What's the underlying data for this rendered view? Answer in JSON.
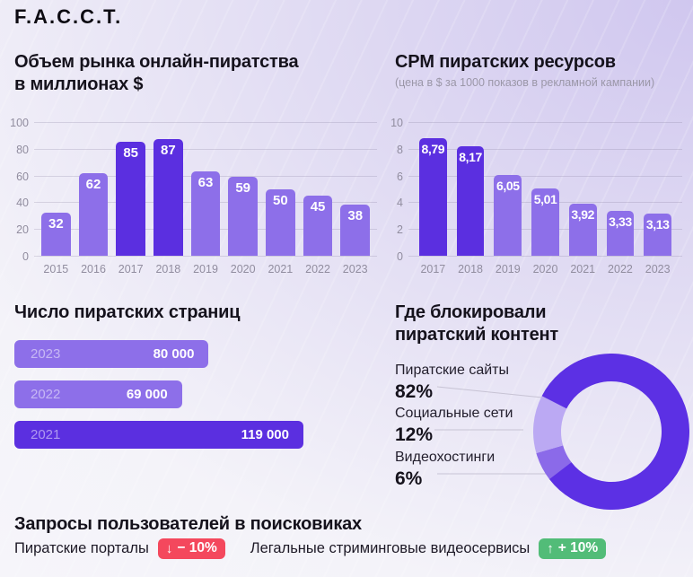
{
  "brand": {
    "logo": "F.A.C.C.T."
  },
  "colors": {
    "bar_light": "#8d6fe9",
    "bar_dark": "#5b2fe0",
    "donut_dark": "#5c30e4",
    "donut_light": "#bba9f3",
    "donut_mid": "#8b6ae9",
    "badge_red": "#f4485d",
    "badge_green": "#52bc78"
  },
  "chart_data": [
    {
      "id": "market",
      "type": "bar",
      "title": "Объем рынка онлайн-пиратства в миллионах $",
      "title_lines": [
        "Объем рынка онлайн-пиратства",
        "в миллионах $"
      ],
      "categories": [
        "2015",
        "2016",
        "2017",
        "2018",
        "2019",
        "2020",
        "2021",
        "2022",
        "2023"
      ],
      "values": [
        32,
        62,
        85,
        87,
        63,
        59,
        50,
        45,
        38
      ],
      "value_labels": [
        "32",
        "62",
        "85",
        "87",
        "63",
        "59",
        "50",
        "45",
        "38"
      ],
      "highlight": [
        "2017",
        "2018"
      ],
      "yticks": [
        "100",
        "80",
        "60",
        "40",
        "20",
        "0"
      ],
      "ylim": [
        0,
        100
      ],
      "grid": true,
      "legend": "none"
    },
    {
      "id": "cpm",
      "type": "bar",
      "title": "CPM пиратских ресурсов",
      "subtitle": "(цена в $ за 1000 показов в рекламной кампании)",
      "categories": [
        "2017",
        "2018",
        "2019",
        "2020",
        "2021",
        "2022",
        "2023"
      ],
      "values": [
        8.79,
        8.17,
        6.05,
        5.01,
        3.92,
        3.33,
        3.13
      ],
      "value_labels": [
        "8,79",
        "8,17",
        "6,05",
        "5,01",
        "3,92",
        "3,33",
        "3,13"
      ],
      "highlight": [
        "2017",
        "2018"
      ],
      "yticks": [
        "10",
        "8",
        "6",
        "4",
        "2",
        "0"
      ],
      "ylim": [
        0,
        10
      ],
      "grid": true,
      "legend": "none"
    },
    {
      "id": "pages",
      "type": "bar",
      "orientation": "horizontal",
      "title": "Число пиратских страниц",
      "categories": [
        "2023",
        "2022",
        "2021"
      ],
      "values": [
        80000,
        69000,
        119000
      ],
      "value_labels": [
        "80 000",
        "69 000",
        "119 000"
      ],
      "highlight": [
        "2021"
      ],
      "xlim": [
        0,
        119000
      ],
      "grid": false
    },
    {
      "id": "blocked",
      "type": "pie",
      "title": "Где блокировали пиратский контент",
      "title_lines": [
        "Где блокировали",
        "пиратский контент"
      ],
      "labels": [
        "Пиратские сайты",
        "Социальные сети",
        "Видеохостинги"
      ],
      "values": [
        82,
        12,
        6
      ],
      "value_labels": [
        "82%",
        "12%",
        "6%"
      ],
      "rotation_deg": 232.4,
      "arc_slices": [
        {
          "pct": 6,
          "color": "donut_mid"
        },
        {
          "pct": 12,
          "color": "donut_light"
        },
        {
          "pct": 82,
          "color": "donut_dark"
        }
      ],
      "legend": "left"
    }
  ],
  "search_trends": {
    "title": "Запросы пользователей в поисковиках",
    "items": [
      {
        "label": "Пиратские порталы",
        "arrow": "↓",
        "badge": "− 10%",
        "direction": "down"
      },
      {
        "label": "Легальные стриминговые видеосервисы",
        "arrow": "↑",
        "badge": "+ 10%",
        "direction": "up"
      }
    ]
  }
}
